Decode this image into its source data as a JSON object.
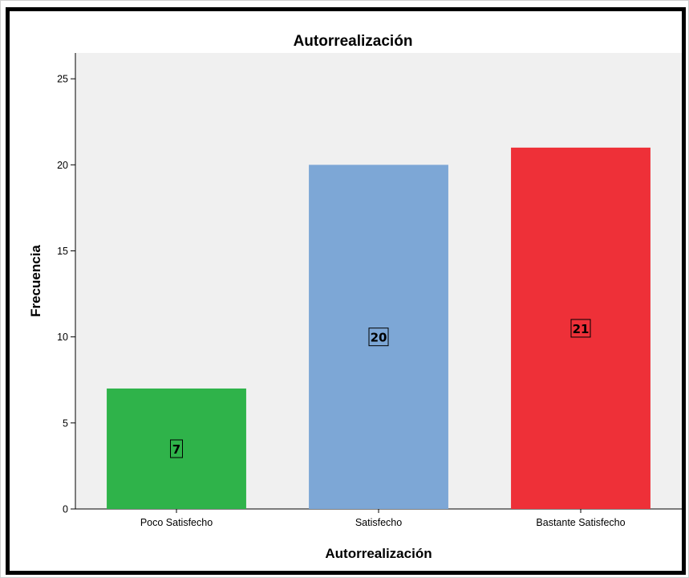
{
  "chart_data": {
    "type": "bar",
    "title": "Autorrealización",
    "xlabel": "Autorrealización",
    "ylabel": "Frecuencia",
    "categories": [
      "Poco Satisfecho",
      "Satisfecho",
      "Bastante Satisfecho"
    ],
    "values": [
      7,
      20,
      21
    ],
    "data_labels": [
      "7",
      "20",
      "21"
    ],
    "colors": [
      "#2fb34a",
      "#7da7d6",
      "#ee3038"
    ],
    "ylim": [
      0,
      26.5
    ],
    "yticks": [
      0,
      5,
      10,
      15,
      20,
      25
    ],
    "ytick_labels": [
      "0",
      "5",
      "10",
      "15",
      "20",
      "25"
    ],
    "grid": false,
    "legend": "none",
    "plot_background": "#f0f0f0"
  }
}
